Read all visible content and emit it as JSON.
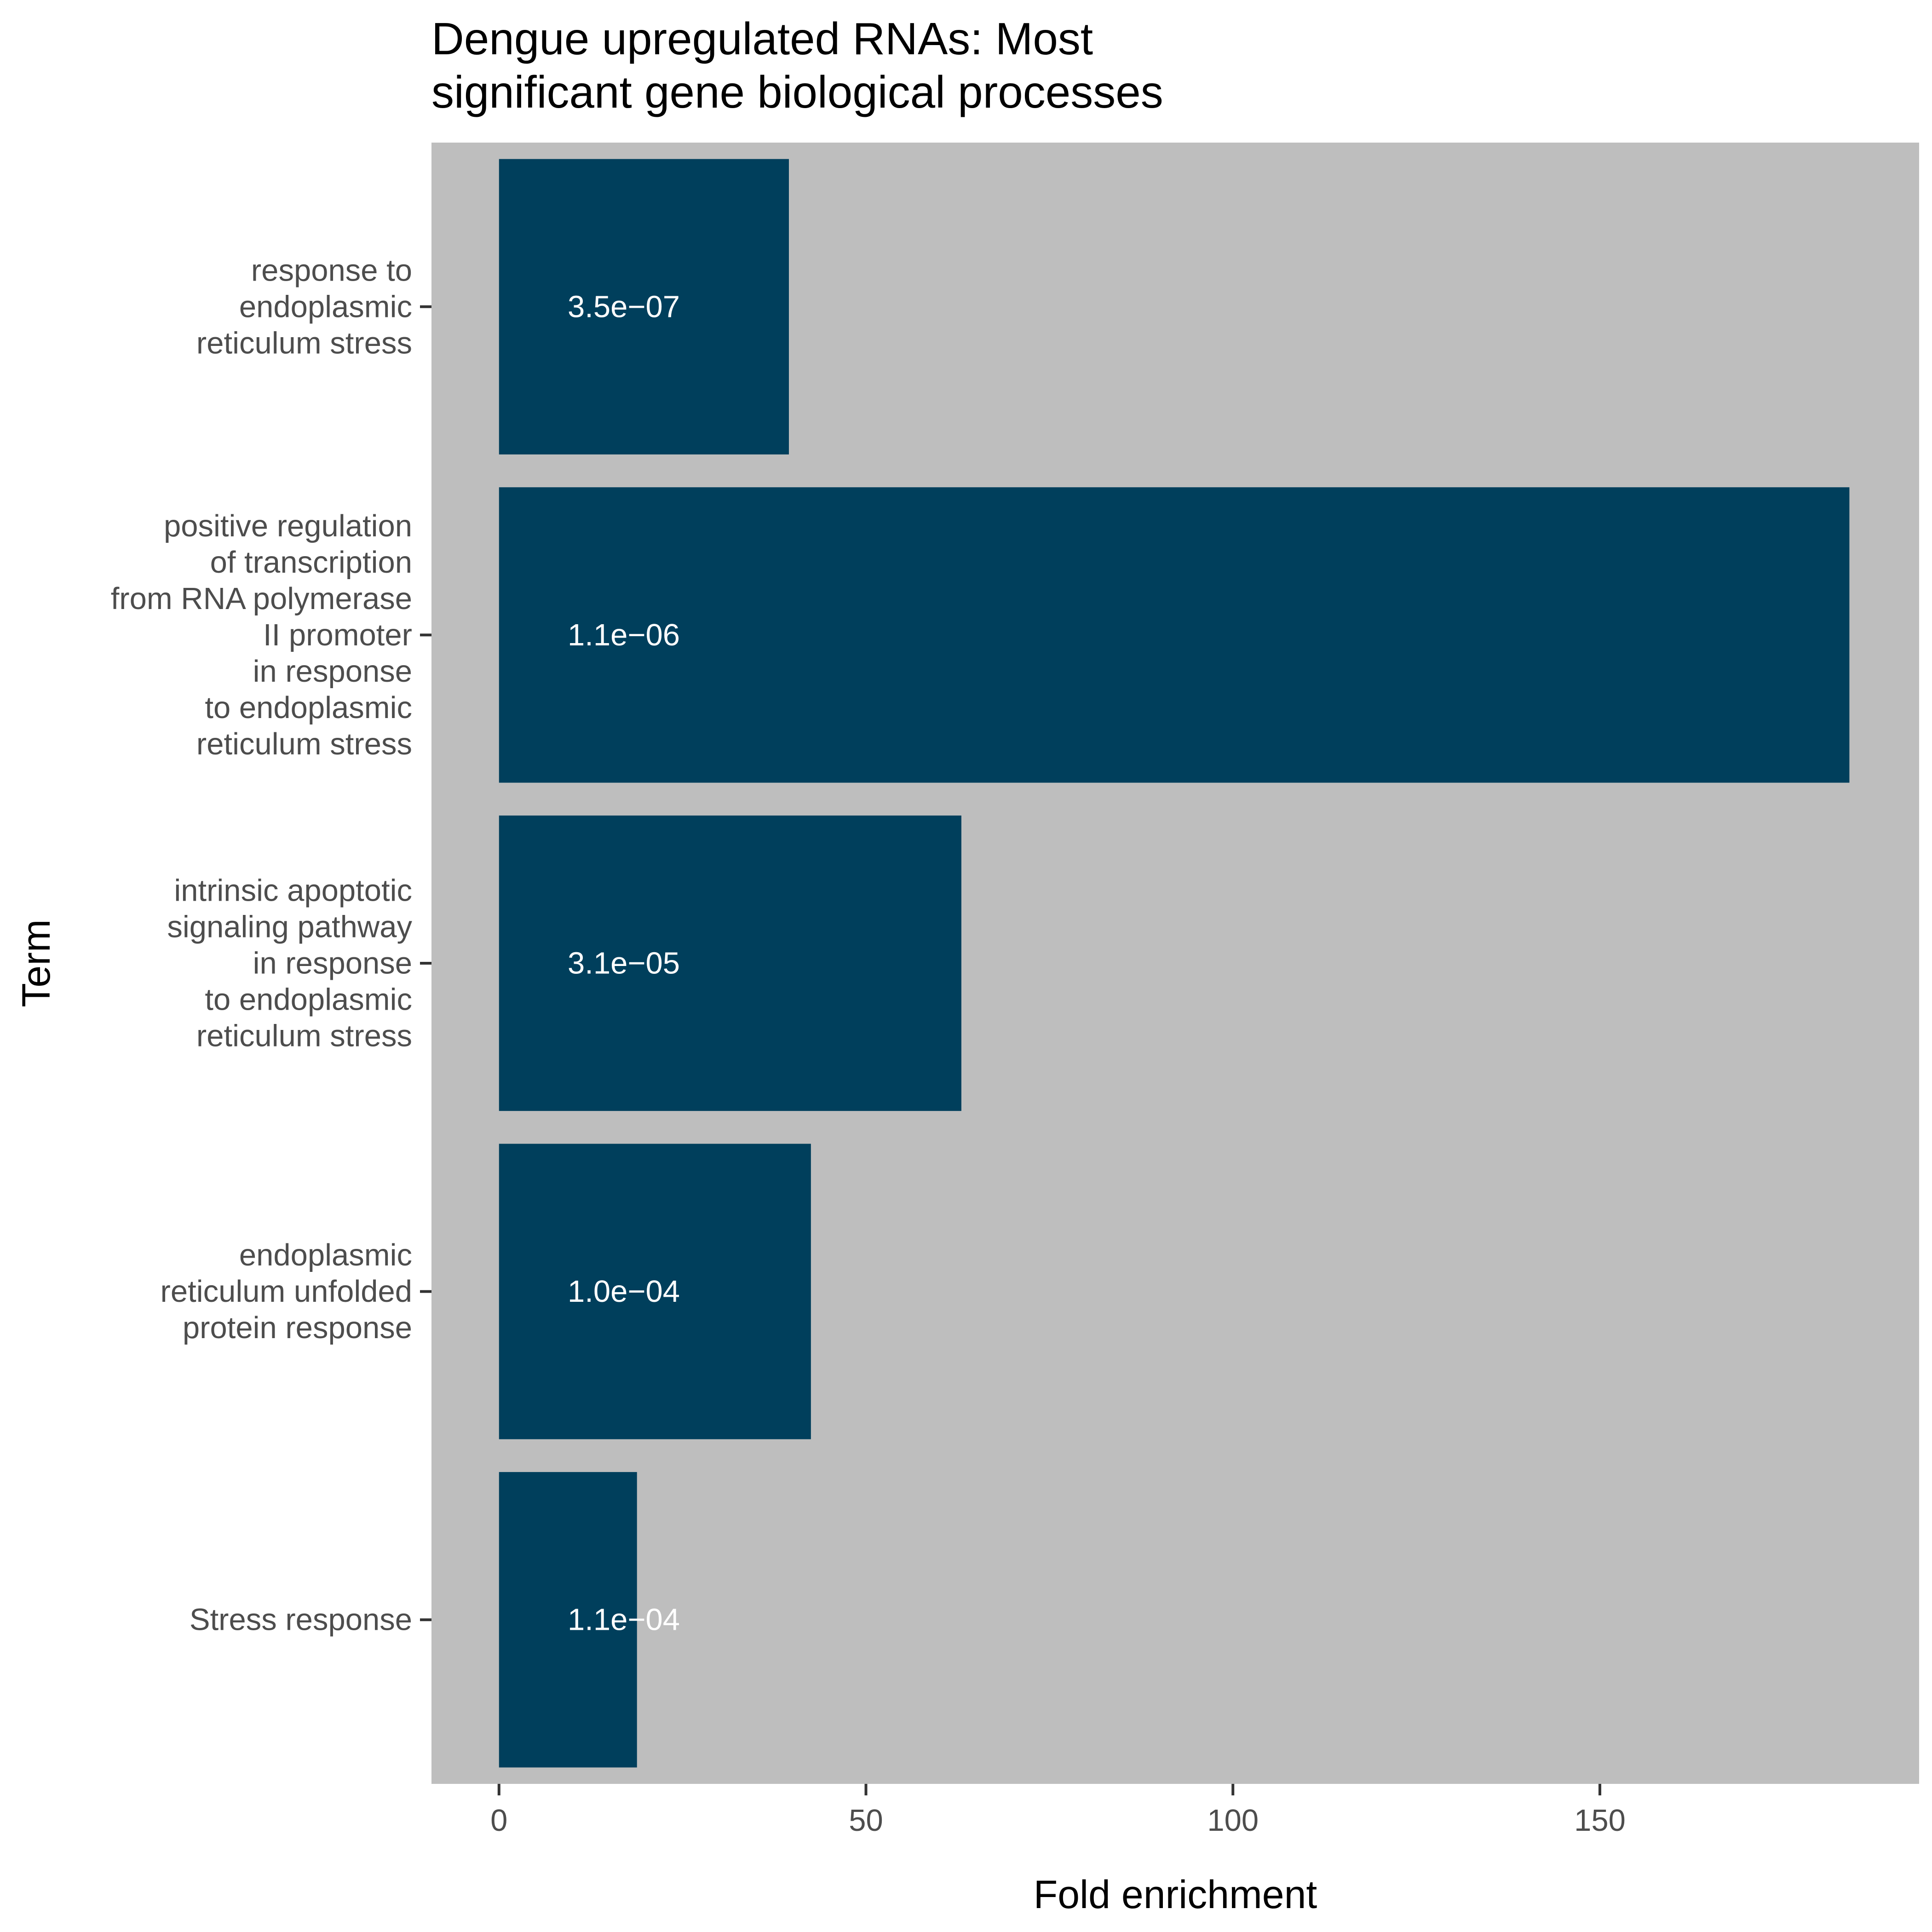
{
  "chart_data": {
    "type": "bar",
    "orientation": "horizontal",
    "title": "Dengue upregulated RNAs: Most\nsignificant gene biological processes",
    "xlabel": "Fold enrichment",
    "ylabel": "Term",
    "xlim": [
      -9.2,
      193.5
    ],
    "x_ticks": [
      0,
      50,
      100,
      150
    ],
    "grid": false,
    "legend": "none",
    "categories": [
      "response to\nendoplasmic\nreticulum stress",
      "positive regulation\nof transcription\nfrom RNA polymerase\nII promoter\nin response\nto endoplasmic\nreticulum stress",
      "intrinsic apoptotic\nsignaling pathway\nin response\nto endoplasmic\nreticulum stress",
      "endoplasmic\nreticulum unfolded\nprotein response",
      "Stress response"
    ],
    "values": [
      39.5,
      184.0,
      63.0,
      42.5,
      18.8
    ],
    "bar_labels": [
      "3.5e−07",
      "1.1e−06",
      "3.1e−05",
      "1.0e−04",
      "1.1e−04"
    ],
    "bar_label_x": 17.0,
    "colors": {
      "bar": "#003f5c",
      "panel": "#bebebe",
      "tick_text": "#4d4d4d",
      "axis_line": "#333333"
    }
  }
}
